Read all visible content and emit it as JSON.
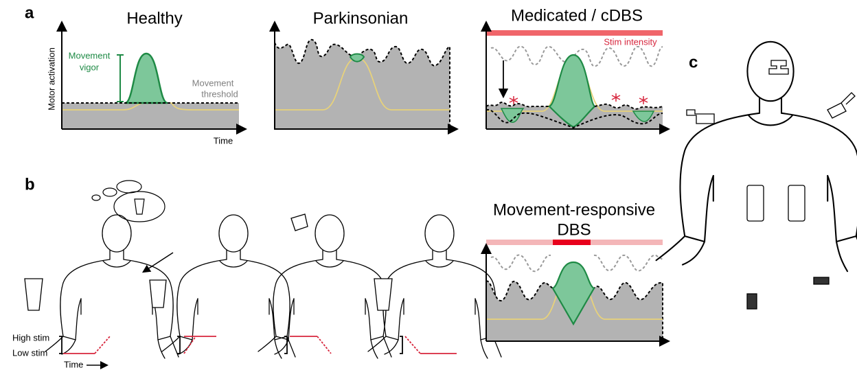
{
  "panel_labels": [
    "a",
    "b",
    "c"
  ],
  "panel_a": {
    "y_axis_label": "Motor activation",
    "x_axis_label": "Time",
    "plots": [
      {
        "title": "Healthy"
      },
      {
        "title": "Parkinsonian"
      },
      {
        "title": "Medicated / cDBS",
        "annotation": "Stim intensity"
      }
    ],
    "vigor_label": [
      "Movement",
      "vigor"
    ],
    "threshold_label": [
      "Movement",
      "threshold"
    ]
  },
  "panel_b": {
    "title_lines": [
      "Movement-responsive",
      "DBS"
    ],
    "stim_labels": [
      "High stim",
      "Low stim"
    ],
    "time_label": "Time"
  }
}
